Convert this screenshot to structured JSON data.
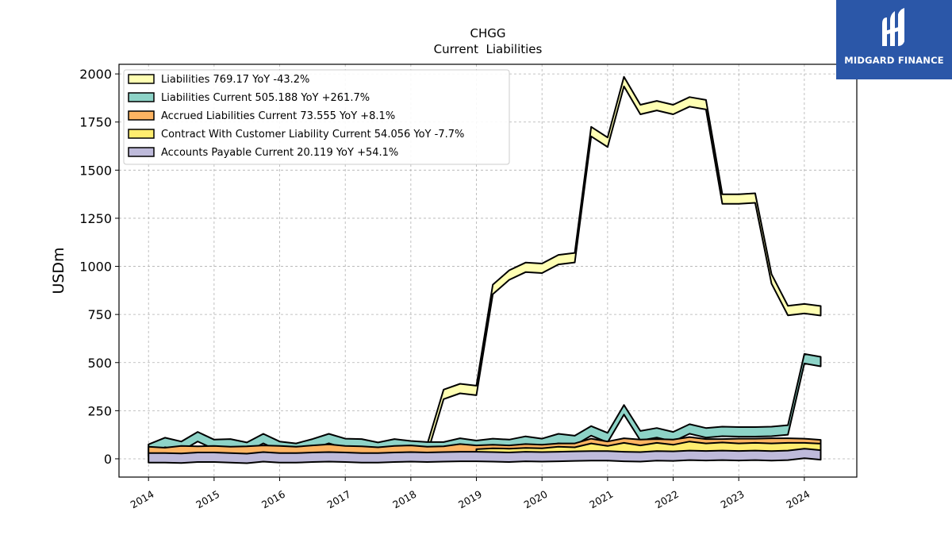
{
  "logo": {
    "text": "MIDGARD FINANCE",
    "icon": "midgard-logo-icon",
    "color": "#2b57a8"
  },
  "chart_data": {
    "type": "area",
    "title": "CHGG",
    "subtitle": "Current  Liabilities",
    "ylabel": "USDm",
    "xlabel": "",
    "xlim": [
      2013.55,
      2024.8
    ],
    "ylim": [
      -95,
      2050
    ],
    "yticks": [
      0,
      250,
      500,
      750,
      1000,
      1250,
      1500,
      1750,
      2000
    ],
    "xticks": [
      "2014",
      "2015",
      "2016",
      "2017",
      "2018",
      "2019",
      "2020",
      "2021",
      "2022",
      "2023",
      "2024"
    ],
    "grid": true,
    "legend_position": "top-left",
    "x": [
      2014.0,
      2014.25,
      2014.5,
      2014.75,
      2015.0,
      2015.25,
      2015.5,
      2015.75,
      2016.0,
      2016.25,
      2016.5,
      2016.75,
      2017.0,
      2017.25,
      2017.5,
      2017.75,
      2018.0,
      2018.25,
      2018.5,
      2018.75,
      2019.0,
      2019.25,
      2019.5,
      2019.75,
      2020.0,
      2020.25,
      2020.5,
      2020.75,
      2021.0,
      2021.25,
      2021.5,
      2021.75,
      2022.0,
      2022.25,
      2022.5,
      2022.75,
      2023.0,
      2023.25,
      2023.5,
      2023.75,
      2024.0,
      2024.25
    ],
    "series": [
      {
        "name": "Liabilities",
        "legend_label": "Liabilities  769.17 YoY -43.2%",
        "color": "#ffffb3",
        "values": [
          null,
          null,
          null,
          null,
          null,
          null,
          null,
          null,
          null,
          null,
          null,
          null,
          null,
          null,
          null,
          null,
          null,
          50,
          335,
          365,
          355,
          880,
          955,
          995,
          990,
          1035,
          1045,
          1700,
          1645,
          1960,
          1815,
          1835,
          1815,
          1855,
          1840,
          1350,
          1350,
          1355,
          935,
          770,
          780,
          769.17
        ]
      },
      {
        "name": "Liabilities Current",
        "legend_label": "Liabilities Current  505.188 YoY +261.7%",
        "color": "#8dd3c7",
        "values": [
          50,
          85,
          65,
          115,
          75,
          78,
          60,
          105,
          65,
          55,
          78,
          105,
          80,
          78,
          60,
          78,
          68,
          62,
          62,
          82,
          70,
          80,
          75,
          92,
          80,
          105,
          95,
          145,
          110,
          255,
          120,
          135,
          115,
          155,
          135,
          142,
          140,
          140,
          142,
          150,
          520,
          505.188
        ]
      },
      {
        "name": "Accrued Liabilities Current",
        "legend_label": "Accrued Liabilities Current  73.555 YoY +8.1%",
        "color": "#fdb462",
        "values": [
          38,
          33,
          42,
          40,
          42,
          38,
          40,
          45,
          42,
          38,
          45,
          50,
          42,
          40,
          35,
          42,
          45,
          38,
          40,
          52,
          45,
          48,
          45,
          52,
          48,
          55,
          55,
          80,
          65,
          82,
          75,
          78,
          75,
          88,
          78,
          78,
          80,
          80,
          82,
          82,
          80,
          73.555
        ]
      },
      {
        "name": "Contract With Customer Liability Current",
        "legend_label": "Contract With Customer Liability Current  54.056 YoY -7.7%",
        "color": "#ffed6f",
        "values": [
          null,
          null,
          null,
          null,
          null,
          null,
          null,
          null,
          null,
          null,
          null,
          null,
          null,
          null,
          null,
          null,
          null,
          null,
          null,
          null,
          25,
          30,
          28,
          32,
          30,
          38,
          35,
          55,
          42,
          58,
          45,
          58,
          48,
          65,
          55,
          60,
          55,
          58,
          55,
          58,
          58,
          54.056
        ]
      },
      {
        "name": "Accounts Payable Current",
        "legend_label": "Accounts Payable Current  20.119 YoY +54.1%",
        "color": "#bebada",
        "values": [
          5,
          5,
          3,
          8,
          8,
          5,
          2,
          10,
          5,
          5,
          8,
          10,
          8,
          5,
          5,
          8,
          10,
          8,
          10,
          12,
          12,
          10,
          8,
          12,
          10,
          12,
          14,
          15,
          15,
          12,
          10,
          15,
          14,
          18,
          16,
          18,
          16,
          18,
          15,
          18,
          28,
          20.119
        ]
      }
    ]
  }
}
